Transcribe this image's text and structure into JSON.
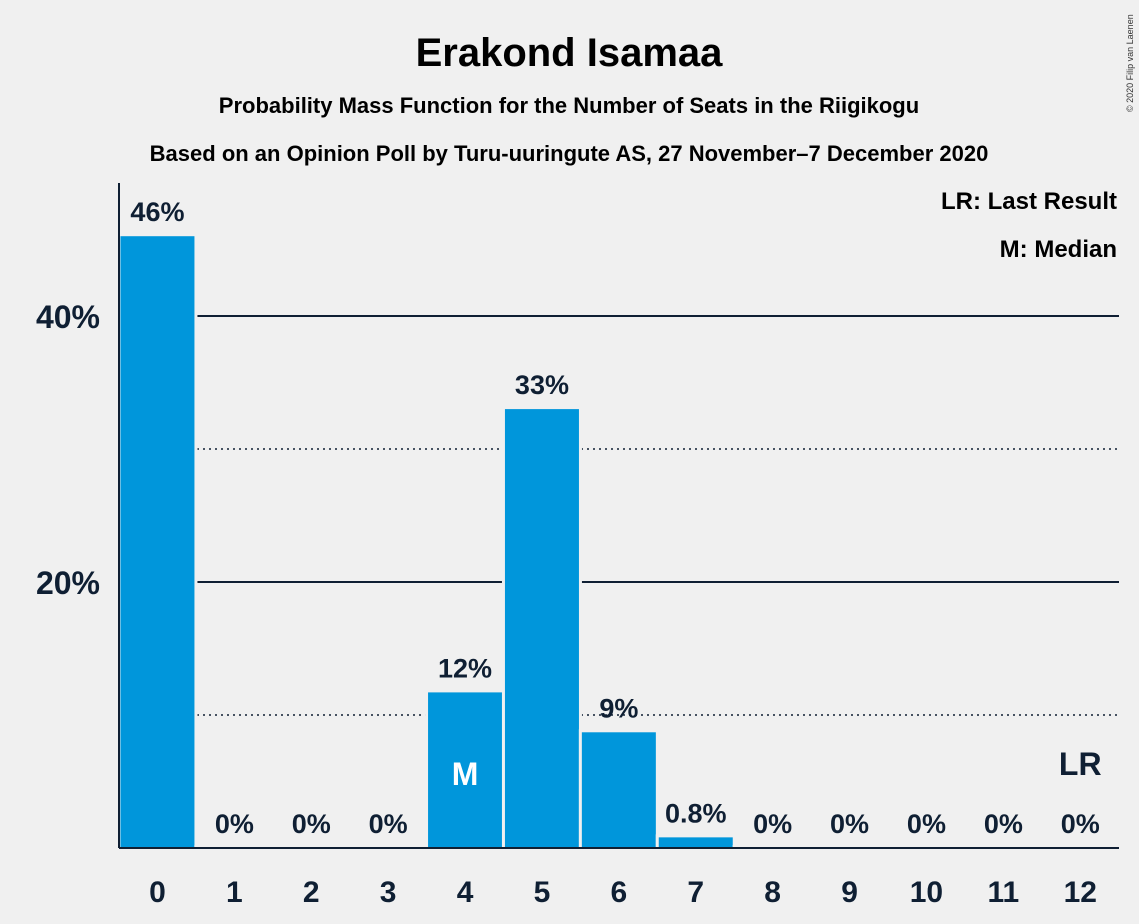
{
  "chart_data": {
    "type": "bar",
    "title": "Erakond Isamaa",
    "subtitle": "Probability Mass Function for the Number of Seats in the Riigikogu",
    "subtitle2": "Based on an Opinion Poll by Turu-uuringute AS, 27 November–7 December 2020",
    "copyright": "© 2020 Filip van Laenen",
    "legend": [
      "LR: Last Result",
      "M: Median"
    ],
    "legend_placement": "top-right",
    "categories": [
      "0",
      "1",
      "2",
      "3",
      "4",
      "5",
      "6",
      "7",
      "8",
      "9",
      "10",
      "11",
      "12"
    ],
    "values": [
      46,
      0,
      0,
      0,
      11.7,
      33,
      8.7,
      0.8,
      0,
      0,
      0,
      0,
      0
    ],
    "data_labels": [
      "46%",
      "0%",
      "0%",
      "0%",
      "12%",
      "33%",
      "9%",
      "0.8%",
      "0%",
      "0%",
      "0%",
      "0%",
      "0%"
    ],
    "ytick_values": [
      20,
      40
    ],
    "ytick_labels": [
      "20%",
      "40%"
    ],
    "minor_gridlines": [
      10,
      30
    ],
    "ylim": [
      0,
      50
    ],
    "median_marker": {
      "category": "4",
      "label": "M"
    },
    "last_result_marker": {
      "category": "12",
      "label": "LR"
    },
    "colors": {
      "bar": "#0096db",
      "axis": "#0f1f33",
      "background": "#f0f0f0",
      "marker_text": "#ffffff"
    }
  }
}
